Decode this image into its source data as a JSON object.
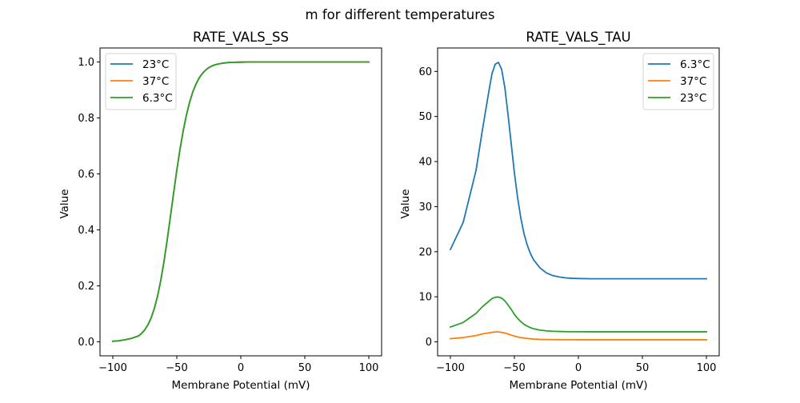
{
  "figure": {
    "suptitle": "m for different temperatures"
  },
  "chart_data": [
    {
      "type": "line",
      "title": "RATE_VALS_SS",
      "xlabel": "Membrane Potential (mV)",
      "ylabel": "Value",
      "xlim": [
        -110,
        110
      ],
      "ylim": [
        -0.05,
        1.05
      ],
      "xticks": [
        -100,
        -50,
        0,
        50,
        100
      ],
      "xtick_labels": [
        "−100",
        "−50",
        "0",
        "50",
        "100"
      ],
      "yticks": [
        0.0,
        0.2,
        0.4,
        0.6,
        0.8,
        1.0
      ],
      "ytick_labels": [
        "0.0",
        "0.2",
        "0.4",
        "0.6",
        "0.8",
        "1.0"
      ],
      "grid": false,
      "legend_position": "upper-left",
      "x": [
        -100,
        -95,
        -90,
        -85,
        -80,
        -77.5,
        -75,
        -72.5,
        -70,
        -67.5,
        -65,
        -62.5,
        -60,
        -57.5,
        -55,
        -52.5,
        -50,
        -47.5,
        -45,
        -42.5,
        -40,
        -37.5,
        -35,
        -32.5,
        -30,
        -27.5,
        -25,
        -22.5,
        -20,
        -17.5,
        -15,
        -10,
        -5,
        0,
        10,
        25,
        50,
        75,
        100
      ],
      "series": [
        {
          "name": "23°C",
          "color": "#1f77b4",
          "values": [
            0.002,
            0.004,
            0.008,
            0.013,
            0.021,
            0.03,
            0.043,
            0.061,
            0.086,
            0.12,
            0.164,
            0.22,
            0.287,
            0.364,
            0.447,
            0.531,
            0.613,
            0.688,
            0.754,
            0.81,
            0.856,
            0.893,
            0.921,
            0.943,
            0.959,
            0.971,
            0.98,
            0.986,
            0.99,
            0.993,
            0.995,
            0.998,
            0.999,
            0.9995,
            1.0,
            1.0,
            1.0,
            1.0,
            1.0
          ]
        },
        {
          "name": "37°C",
          "color": "#ff7f0e",
          "values": [
            0.002,
            0.004,
            0.008,
            0.013,
            0.021,
            0.03,
            0.043,
            0.061,
            0.086,
            0.12,
            0.164,
            0.22,
            0.287,
            0.364,
            0.447,
            0.531,
            0.613,
            0.688,
            0.754,
            0.81,
            0.856,
            0.893,
            0.921,
            0.943,
            0.959,
            0.971,
            0.98,
            0.986,
            0.99,
            0.993,
            0.995,
            0.998,
            0.999,
            0.9995,
            1.0,
            1.0,
            1.0,
            1.0,
            1.0
          ]
        },
        {
          "name": "6.3°C",
          "color": "#2ca02c",
          "values": [
            0.002,
            0.004,
            0.008,
            0.013,
            0.021,
            0.03,
            0.043,
            0.061,
            0.086,
            0.12,
            0.164,
            0.22,
            0.287,
            0.364,
            0.447,
            0.531,
            0.613,
            0.688,
            0.754,
            0.81,
            0.856,
            0.893,
            0.921,
            0.943,
            0.959,
            0.971,
            0.98,
            0.986,
            0.99,
            0.993,
            0.995,
            0.998,
            0.999,
            0.9995,
            1.0,
            1.0,
            1.0,
            1.0,
            1.0
          ]
        }
      ]
    },
    {
      "type": "line",
      "title": "RATE_VALS_TAU",
      "xlabel": "Membrane Potential (mV)",
      "ylabel": "Value",
      "xlim": [
        -110,
        110
      ],
      "ylim": [
        -3.1,
        65.2
      ],
      "xticks": [
        -100,
        -50,
        0,
        50,
        100
      ],
      "xtick_labels": [
        "−100",
        "−50",
        "0",
        "50",
        "100"
      ],
      "yticks": [
        0,
        10,
        20,
        30,
        40,
        50,
        60
      ],
      "ytick_labels": [
        "0",
        "10",
        "20",
        "30",
        "40",
        "50",
        "60"
      ],
      "grid": false,
      "legend_position": "upper-right",
      "x": [
        -100,
        -90,
        -80,
        -75,
        -70,
        -67.5,
        -65,
        -62.5,
        -60,
        -57.5,
        -55,
        -52.5,
        -50,
        -47.5,
        -45,
        -42.5,
        -40,
        -37.5,
        -35,
        -30,
        -25,
        -20,
        -15,
        -10,
        -5,
        0,
        10,
        25,
        50,
        75,
        100
      ],
      "series": [
        {
          "name": "6.3°C",
          "color": "#1f77b4",
          "values": [
            20.5,
            26.5,
            38.0,
            47.0,
            55.5,
            59.5,
            61.6,
            62.0,
            60.5,
            56.5,
            50.5,
            44.0,
            37.5,
            32.0,
            27.5,
            24.0,
            21.5,
            19.6,
            18.2,
            16.4,
            15.3,
            14.7,
            14.4,
            14.2,
            14.1,
            14.05,
            14.0,
            14.0,
            14.0,
            14.0,
            14.0
          ]
        },
        {
          "name": "37°C",
          "color": "#ff7f0e",
          "values": [
            0.7,
            0.95,
            1.4,
            1.75,
            2.0,
            2.1,
            2.2,
            2.2,
            2.1,
            1.95,
            1.75,
            1.5,
            1.3,
            1.1,
            0.95,
            0.85,
            0.75,
            0.68,
            0.62,
            0.55,
            0.51,
            0.49,
            0.48,
            0.47,
            0.47,
            0.46,
            0.46,
            0.46,
            0.46,
            0.46,
            0.46
          ]
        },
        {
          "name": "23°C",
          "color": "#2ca02c",
          "values": [
            3.3,
            4.3,
            6.3,
            7.8,
            9.0,
            9.6,
            9.9,
            9.95,
            9.7,
            9.1,
            8.2,
            7.2,
            6.1,
            5.2,
            4.5,
            3.9,
            3.5,
            3.15,
            2.9,
            2.6,
            2.45,
            2.35,
            2.3,
            2.27,
            2.25,
            2.24,
            2.23,
            2.23,
            2.23,
            2.23,
            2.23
          ]
        }
      ]
    }
  ]
}
